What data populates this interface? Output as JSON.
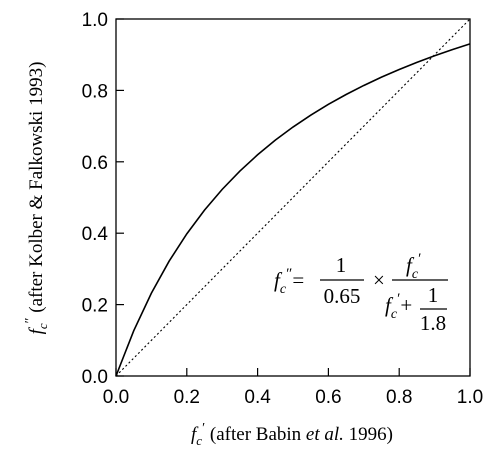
{
  "chart_data": {
    "type": "line",
    "xlim": [
      0,
      1
    ],
    "ylim": [
      0,
      1
    ],
    "x_ticks": [
      "0.0",
      "0.2",
      "0.4",
      "0.6",
      "0.8",
      "1.0"
    ],
    "y_ticks": [
      "0.0",
      "0.2",
      "0.4",
      "0.6",
      "0.8",
      "1.0"
    ],
    "xlabel": {
      "symbol": "f",
      "subscript": "c",
      "prime": "′",
      "text_before_italic": " (after Babin ",
      "text_italic": "et al.",
      "text_after_italic": " 1996)"
    },
    "ylabel": {
      "symbol": "f",
      "subscript": "c",
      "prime": "″",
      "text": " (after Kolber & Falkowski 1993)"
    },
    "equation": {
      "lhs_symbol": "f",
      "lhs_subscript": "c",
      "lhs_prime": "″",
      "equals": "=",
      "coef_numerator": "1",
      "coef_denominator": "0.65",
      "times": "×",
      "frac_numerator_symbol": "f",
      "frac_numerator_subscript": "c",
      "frac_numerator_prime": "′",
      "frac_denominator_symbol": "f",
      "frac_denominator_subscript": "c",
      "frac_denominator_prime": "′",
      "plus": "+",
      "inner_numerator": "1",
      "inner_denominator": "1.8"
    },
    "series": [
      {
        "style": "solid",
        "x": [
          0,
          0.05,
          0.1,
          0.15,
          0.2,
          0.25,
          0.3,
          0.35,
          0.4,
          0.45,
          0.5,
          0.55,
          0.6,
          0.65,
          0.7,
          0.75,
          0.8,
          0.85,
          0.9,
          0.95,
          1.0
        ],
        "y": [
          0,
          0.1266,
          0.2322,
          0.3216,
          0.3982,
          0.4646,
          0.5228,
          0.5741,
          0.6197,
          0.6606,
          0.6974,
          0.7306,
          0.7609,
          0.7885,
          0.8138,
          0.8371,
          0.8586,
          0.8786,
          0.897,
          0.9143,
          0.9304
        ]
      },
      {
        "style": "dotted",
        "x": [
          0,
          1
        ],
        "y": [
          0,
          1
        ]
      }
    ],
    "grid": false,
    "legend": "none"
  }
}
